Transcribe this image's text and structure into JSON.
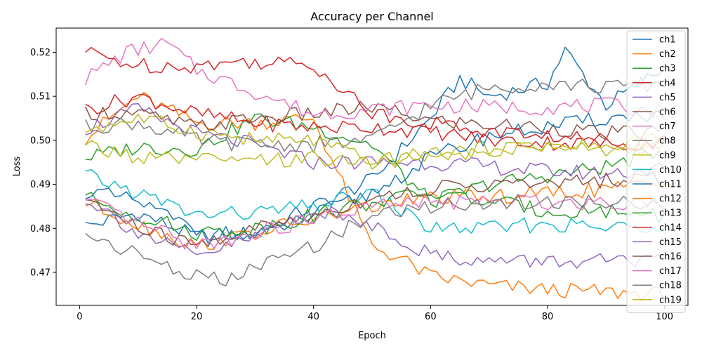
{
  "chart_data": {
    "type": "line",
    "title": "Accuracy per Channel",
    "xlabel": "Epoch",
    "ylabel": "Loss",
    "xlim": [
      -4,
      104
    ],
    "ylim": [
      0.4625,
      0.5255
    ],
    "xticks": [
      0,
      20,
      40,
      60,
      80,
      100
    ],
    "yticks": [
      0.47,
      0.48,
      0.49,
      0.5,
      0.51,
      0.52
    ],
    "ytick_labels": [
      "0.47",
      "0.48",
      "0.49",
      "0.50",
      "0.51",
      "0.52"
    ],
    "grid": false,
    "legend": "top-right",
    "series": [
      {
        "name": "ch1",
        "color": "#1f77b4",
        "points": [
          [
            1,
            0.4805
          ],
          [
            10,
            0.4835
          ],
          [
            20,
            0.478
          ],
          [
            30,
            0.479
          ],
          [
            40,
            0.485
          ],
          [
            50,
            0.491
          ],
          [
            60,
            0.505
          ],
          [
            65,
            0.514
          ],
          [
            70,
            0.51
          ],
          [
            80,
            0.513
          ],
          [
            83,
            0.5205
          ],
          [
            90,
            0.508
          ],
          [
            100,
            0.5165
          ]
        ]
      },
      {
        "name": "ch2",
        "color": "#ff7f0e",
        "points": [
          [
            1,
            0.5005
          ],
          [
            10,
            0.51
          ],
          [
            20,
            0.504
          ],
          [
            30,
            0.504
          ],
          [
            40,
            0.505
          ],
          [
            45,
            0.49
          ],
          [
            50,
            0.476
          ],
          [
            55,
            0.473
          ],
          [
            60,
            0.469
          ],
          [
            70,
            0.467
          ],
          [
            80,
            0.466
          ],
          [
            90,
            0.4655
          ],
          [
            100,
            0.465
          ]
        ]
      },
      {
        "name": "ch3",
        "color": "#2ca02c",
        "points": [
          [
            1,
            0.496
          ],
          [
            10,
            0.4985
          ],
          [
            20,
            0.498
          ],
          [
            30,
            0.505
          ],
          [
            40,
            0.503
          ],
          [
            50,
            0.499
          ],
          [
            60,
            0.486
          ],
          [
            70,
            0.49
          ],
          [
            80,
            0.492
          ],
          [
            90,
            0.494
          ],
          [
            100,
            0.498
          ]
        ]
      },
      {
        "name": "ch4",
        "color": "#d62728",
        "points": [
          [
            1,
            0.507
          ],
          [
            10,
            0.51
          ],
          [
            20,
            0.506
          ],
          [
            30,
            0.504
          ],
          [
            40,
            0.503
          ],
          [
            50,
            0.503
          ],
          [
            60,
            0.502
          ],
          [
            70,
            0.5
          ],
          [
            80,
            0.4995
          ],
          [
            90,
            0.499
          ],
          [
            100,
            0.5
          ]
        ]
      },
      {
        "name": "ch5",
        "color": "#9467bd",
        "points": [
          [
            1,
            0.5025
          ],
          [
            10,
            0.507
          ],
          [
            20,
            0.5015
          ],
          [
            30,
            0.499
          ],
          [
            40,
            0.495
          ],
          [
            50,
            0.495
          ],
          [
            60,
            0.495
          ],
          [
            70,
            0.494
          ],
          [
            80,
            0.493
          ],
          [
            90,
            0.4925
          ],
          [
            100,
            0.4935
          ]
        ]
      },
      {
        "name": "ch6",
        "color": "#8c564b",
        "points": [
          [
            1,
            0.5065
          ],
          [
            10,
            0.506
          ],
          [
            20,
            0.503
          ],
          [
            30,
            0.505
          ],
          [
            40,
            0.506
          ],
          [
            50,
            0.5075
          ],
          [
            60,
            0.5045
          ],
          [
            70,
            0.5035
          ],
          [
            80,
            0.503
          ],
          [
            90,
            0.5015
          ],
          [
            100,
            0.502
          ]
        ]
      },
      {
        "name": "ch7",
        "color": "#e377c2",
        "points": [
          [
            1,
            0.514
          ],
          [
            8,
            0.52
          ],
          [
            15,
            0.522
          ],
          [
            20,
            0.516
          ],
          [
            30,
            0.511
          ],
          [
            40,
            0.506
          ],
          [
            50,
            0.507
          ],
          [
            60,
            0.508
          ],
          [
            70,
            0.5075
          ],
          [
            80,
            0.5075
          ],
          [
            90,
            0.508
          ],
          [
            100,
            0.5065
          ]
        ]
      },
      {
        "name": "ch8",
        "color": "#7f7f7f",
        "points": [
          [
            1,
            0.503
          ],
          [
            10,
            0.504
          ],
          [
            20,
            0.5
          ],
          [
            30,
            0.499
          ],
          [
            40,
            0.499
          ],
          [
            50,
            0.5
          ],
          [
            60,
            0.508
          ],
          [
            70,
            0.512
          ],
          [
            80,
            0.513
          ],
          [
            90,
            0.512
          ],
          [
            100,
            0.513
          ]
        ]
      },
      {
        "name": "ch9",
        "color": "#bcbd22",
        "points": [
          [
            1,
            0.5025
          ],
          [
            10,
            0.505
          ],
          [
            20,
            0.502
          ],
          [
            30,
            0.5
          ],
          [
            40,
            0.5
          ],
          [
            50,
            0.495
          ],
          [
            60,
            0.497
          ],
          [
            70,
            0.498
          ],
          [
            80,
            0.499
          ],
          [
            90,
            0.4975
          ],
          [
            100,
            0.4985
          ]
        ]
      },
      {
        "name": "ch10",
        "color": "#17becf",
        "points": [
          [
            1,
            0.492
          ],
          [
            10,
            0.488
          ],
          [
            20,
            0.483
          ],
          [
            30,
            0.4835
          ],
          [
            40,
            0.485
          ],
          [
            50,
            0.488
          ],
          [
            60,
            0.48
          ],
          [
            70,
            0.48
          ],
          [
            80,
            0.481
          ],
          [
            90,
            0.48
          ],
          [
            100,
            0.481
          ]
        ]
      },
      {
        "name": "ch11",
        "color": "#1f77b4",
        "points": [
          [
            1,
            0.4885
          ],
          [
            10,
            0.486
          ],
          [
            20,
            0.4795
          ],
          [
            30,
            0.478
          ],
          [
            40,
            0.483
          ],
          [
            50,
            0.488
          ],
          [
            60,
            0.496
          ],
          [
            70,
            0.501
          ],
          [
            80,
            0.503
          ],
          [
            90,
            0.505
          ],
          [
            100,
            0.506
          ]
        ]
      },
      {
        "name": "ch12",
        "color": "#ff7f0e",
        "points": [
          [
            1,
            0.486
          ],
          [
            10,
            0.481
          ],
          [
            20,
            0.476
          ],
          [
            30,
            0.479
          ],
          [
            40,
            0.482
          ],
          [
            50,
            0.485
          ],
          [
            60,
            0.487
          ],
          [
            70,
            0.487
          ],
          [
            80,
            0.488
          ],
          [
            90,
            0.489
          ],
          [
            100,
            0.49
          ]
        ]
      },
      {
        "name": "ch13",
        "color": "#2ca02c",
        "points": [
          [
            1,
            0.487
          ],
          [
            10,
            0.483
          ],
          [
            20,
            0.479
          ],
          [
            30,
            0.48
          ],
          [
            40,
            0.483
          ],
          [
            50,
            0.486
          ],
          [
            60,
            0.488
          ],
          [
            70,
            0.486
          ],
          [
            80,
            0.484
          ],
          [
            90,
            0.484
          ],
          [
            100,
            0.483
          ]
        ]
      },
      {
        "name": "ch14",
        "color": "#d62728",
        "points": [
          [
            1,
            0.52
          ],
          [
            10,
            0.517
          ],
          [
            20,
            0.517
          ],
          [
            30,
            0.518
          ],
          [
            40,
            0.517
          ],
          [
            45,
            0.512
          ],
          [
            50,
            0.506
          ],
          [
            60,
            0.504
          ],
          [
            70,
            0.502
          ],
          [
            80,
            0.501
          ],
          [
            90,
            0.5
          ],
          [
            100,
            0.499
          ]
        ]
      },
      {
        "name": "ch15",
        "color": "#9467bd",
        "points": [
          [
            1,
            0.487
          ],
          [
            10,
            0.479
          ],
          [
            20,
            0.4735
          ],
          [
            30,
            0.478
          ],
          [
            40,
            0.484
          ],
          [
            50,
            0.481
          ],
          [
            60,
            0.474
          ],
          [
            70,
            0.4725
          ],
          [
            80,
            0.4725
          ],
          [
            90,
            0.4725
          ],
          [
            100,
            0.472
          ]
        ]
      },
      {
        "name": "ch16",
        "color": "#8c564b",
        "points": [
          [
            1,
            0.487
          ],
          [
            10,
            0.48
          ],
          [
            20,
            0.476
          ],
          [
            30,
            0.48
          ],
          [
            40,
            0.483
          ],
          [
            50,
            0.487
          ],
          [
            60,
            0.489
          ],
          [
            70,
            0.49
          ],
          [
            80,
            0.49
          ],
          [
            90,
            0.491
          ],
          [
            100,
            0.4915
          ]
        ]
      },
      {
        "name": "ch17",
        "color": "#e377c2",
        "points": [
          [
            1,
            0.486
          ],
          [
            10,
            0.481
          ],
          [
            20,
            0.476
          ],
          [
            30,
            0.479
          ],
          [
            40,
            0.482
          ],
          [
            50,
            0.485
          ],
          [
            60,
            0.486
          ],
          [
            70,
            0.486
          ],
          [
            80,
            0.486
          ],
          [
            90,
            0.486
          ],
          [
            100,
            0.486
          ]
        ]
      },
      {
        "name": "ch18",
        "color": "#7f7f7f",
        "points": [
          [
            1,
            0.479
          ],
          [
            10,
            0.474
          ],
          [
            20,
            0.469
          ],
          [
            25,
            0.468
          ],
          [
            30,
            0.471
          ],
          [
            40,
            0.476
          ],
          [
            50,
            0.483
          ],
          [
            60,
            0.485
          ],
          [
            70,
            0.486
          ],
          [
            80,
            0.486
          ],
          [
            90,
            0.486
          ],
          [
            100,
            0.486
          ]
        ]
      },
      {
        "name": "ch19",
        "color": "#bcbd22",
        "points": [
          [
            1,
            0.499
          ],
          [
            10,
            0.496
          ],
          [
            20,
            0.4955
          ],
          [
            30,
            0.495
          ],
          [
            40,
            0.496
          ],
          [
            50,
            0.495
          ],
          [
            60,
            0.496
          ],
          [
            70,
            0.4975
          ],
          [
            80,
            0.499
          ],
          [
            90,
            0.499
          ],
          [
            100,
            0.5
          ]
        ]
      }
    ]
  }
}
